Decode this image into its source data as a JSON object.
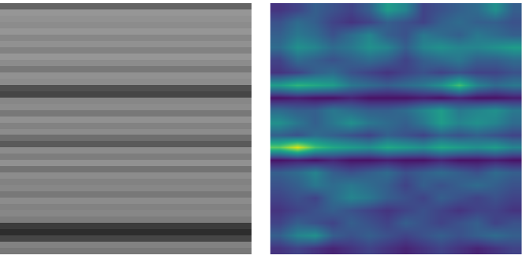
{
  "chart_data": [
    {
      "type": "heatmap",
      "color": "gray",
      "tick_labels": false,
      "zlim": [
        0,
        255
      ],
      "z": [
        [
          100
        ],
        [
          150
        ],
        [
          145
        ],
        [
          140
        ],
        [
          150
        ],
        [
          135
        ],
        [
          145
        ],
        [
          130
        ],
        [
          150
        ],
        [
          140
        ],
        [
          120
        ],
        [
          145
        ],
        [
          140
        ],
        [
          80
        ],
        [
          70
        ],
        [
          135
        ],
        [
          140
        ],
        [
          120
        ],
        [
          145
        ],
        [
          130
        ],
        [
          140
        ],
        [
          110
        ],
        [
          90
        ],
        [
          140
        ],
        [
          125
        ],
        [
          145
        ],
        [
          115
        ],
        [
          140
        ],
        [
          130
        ],
        [
          135
        ],
        [
          120
        ],
        [
          140
        ],
        [
          130
        ],
        [
          135
        ],
        [
          125
        ],
        [
          60
        ],
        [
          45
        ],
        [
          70
        ],
        [
          130
        ],
        [
          120
        ]
      ]
    },
    {
      "type": "heatmap",
      "color": "viridis",
      "tick_labels": false,
      "zlim": [
        0,
        1
      ],
      "z": [
        [
          0.15,
          0.2,
          0.3,
          0.25,
          0.2,
          0.3,
          0.55,
          0.45,
          0.2,
          0.25,
          0.3,
          0.35,
          0.5,
          0.3
        ],
        [
          0.25,
          0.35,
          0.3,
          0.2,
          0.15,
          0.2,
          0.3,
          0.25,
          0.2,
          0.3,
          0.35,
          0.3,
          0.3,
          0.25
        ],
        [
          0.3,
          0.4,
          0.35,
          0.25,
          0.35,
          0.45,
          0.3,
          0.25,
          0.4,
          0.35,
          0.3,
          0.4,
          0.35,
          0.3
        ],
        [
          0.35,
          0.5,
          0.45,
          0.35,
          0.4,
          0.5,
          0.45,
          0.3,
          0.45,
          0.5,
          0.45,
          0.45,
          0.5,
          0.55
        ],
        [
          0.2,
          0.35,
          0.3,
          0.25,
          0.3,
          0.35,
          0.3,
          0.2,
          0.3,
          0.35,
          0.4,
          0.3,
          0.3,
          0.35
        ],
        [
          0.15,
          0.2,
          0.3,
          0.35,
          0.25,
          0.2,
          0.15,
          0.2,
          0.25,
          0.2,
          0.25,
          0.2,
          0.2,
          0.25
        ],
        [
          0.55,
          0.65,
          0.6,
          0.55,
          0.4,
          0.35,
          0.3,
          0.35,
          0.4,
          0.5,
          0.7,
          0.45,
          0.35,
          0.4
        ],
        [
          0.05,
          0.08,
          0.05,
          0.05,
          0.1,
          0.05,
          0.05,
          0.05,
          0.08,
          0.05,
          0.1,
          0.05,
          0.05,
          0.08
        ],
        [
          0.35,
          0.3,
          0.3,
          0.4,
          0.35,
          0.3,
          0.3,
          0.35,
          0.45,
          0.55,
          0.4,
          0.45,
          0.5,
          0.4
        ],
        [
          0.5,
          0.4,
          0.3,
          0.4,
          0.5,
          0.4,
          0.35,
          0.3,
          0.4,
          0.55,
          0.45,
          0.5,
          0.45,
          0.35
        ],
        [
          0.3,
          0.25,
          0.35,
          0.3,
          0.25,
          0.2,
          0.3,
          0.25,
          0.2,
          0.3,
          0.25,
          0.3,
          0.25,
          0.2
        ],
        [
          0.75,
          0.95,
          0.7,
          0.6,
          0.55,
          0.5,
          0.6,
          0.55,
          0.5,
          0.6,
          0.55,
          0.5,
          0.55,
          0.45
        ],
        [
          0.05,
          0.08,
          0.05,
          0.1,
          0.05,
          0.05,
          0.08,
          0.05,
          0.05,
          0.1,
          0.05,
          0.05,
          0.08,
          0.05
        ],
        [
          0.3,
          0.35,
          0.45,
          0.3,
          0.25,
          0.3,
          0.35,
          0.25,
          0.3,
          0.35,
          0.3,
          0.25,
          0.35,
          0.3
        ],
        [
          0.25,
          0.3,
          0.4,
          0.35,
          0.4,
          0.35,
          0.3,
          0.2,
          0.3,
          0.25,
          0.3,
          0.35,
          0.3,
          0.25
        ],
        [
          0.2,
          0.25,
          0.2,
          0.35,
          0.45,
          0.4,
          0.3,
          0.25,
          0.2,
          0.3,
          0.25,
          0.2,
          0.25,
          0.2
        ],
        [
          0.15,
          0.2,
          0.25,
          0.3,
          0.25,
          0.2,
          0.15,
          0.2,
          0.25,
          0.2,
          0.15,
          0.2,
          0.2,
          0.15
        ],
        [
          0.2,
          0.3,
          0.25,
          0.2,
          0.3,
          0.25,
          0.2,
          0.3,
          0.25,
          0.2,
          0.25,
          0.3,
          0.2,
          0.25
        ],
        [
          0.3,
          0.45,
          0.5,
          0.3,
          0.25,
          0.3,
          0.25,
          0.2,
          0.25,
          0.3,
          0.25,
          0.3,
          0.35,
          0.3
        ],
        [
          0.15,
          0.2,
          0.15,
          0.1,
          0.15,
          0.2,
          0.15,
          0.1,
          0.15,
          0.2,
          0.15,
          0.1,
          0.15,
          0.2
        ]
      ]
    }
  ]
}
